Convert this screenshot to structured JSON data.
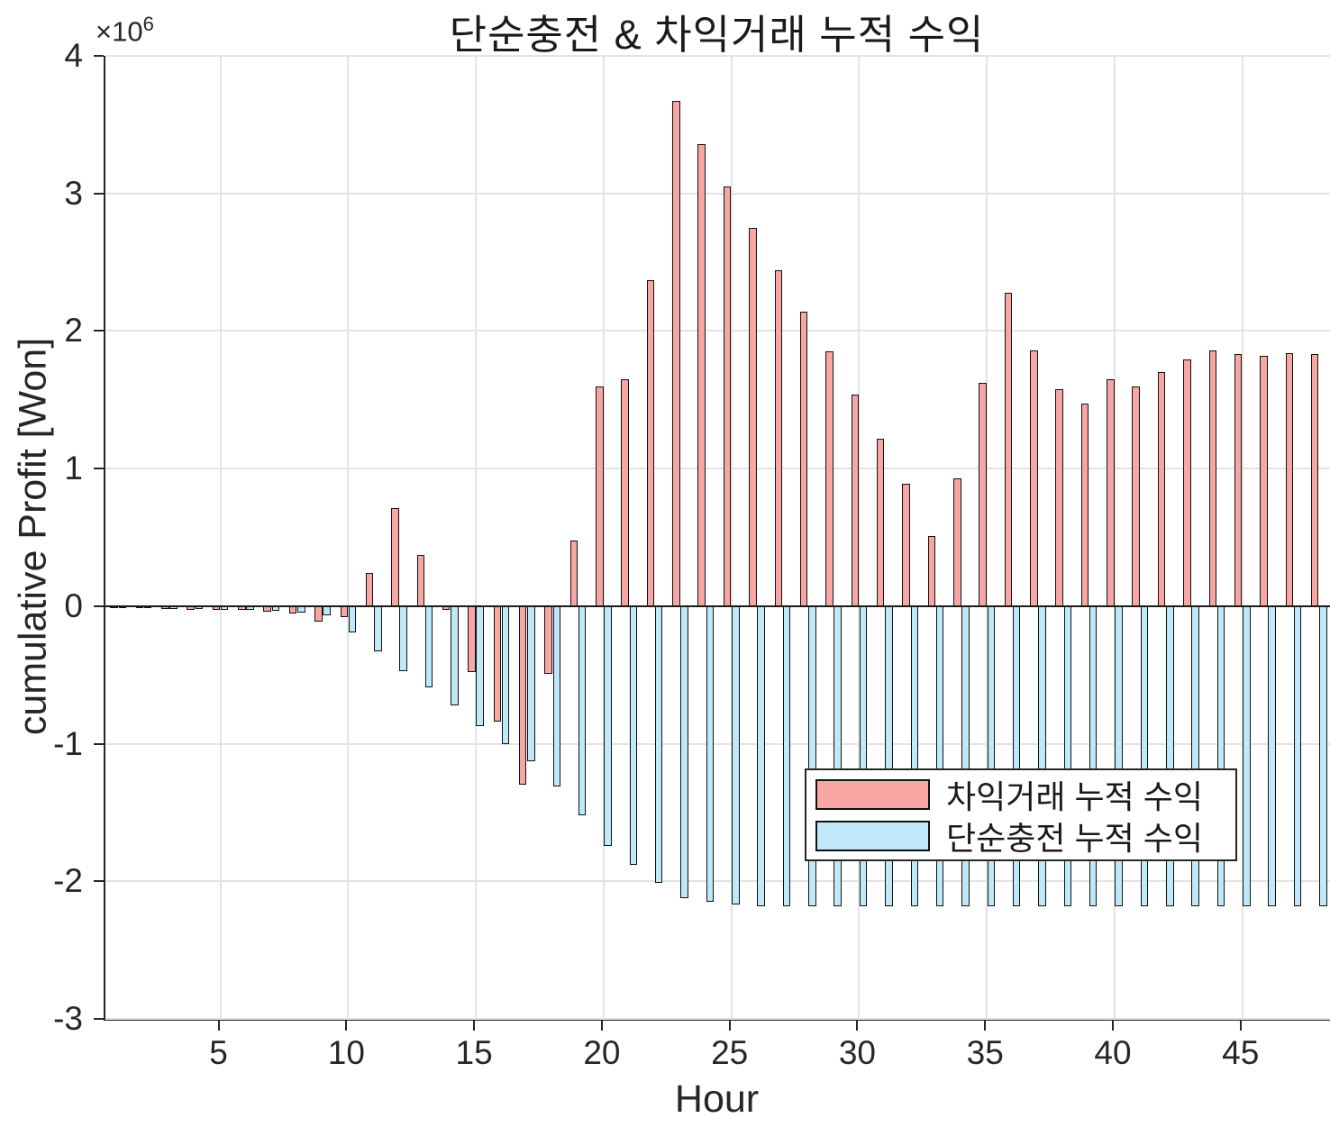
{
  "title": "단순충전 & 차익거래 누적 수익",
  "x_axis": {
    "label": "Hour",
    "ticks": [
      5,
      10,
      15,
      20,
      25,
      30,
      35,
      40,
      45
    ]
  },
  "y_axis": {
    "label": "cumulative Profit [Won]",
    "multiplier_base": "×10",
    "multiplier_exp": "6",
    "ticks": [
      4,
      3,
      2,
      1,
      0,
      -1,
      -2,
      -3
    ]
  },
  "legend": {
    "entries": [
      {
        "label": "차익거래 누적 수익",
        "color": "#f7a6a3"
      },
      {
        "label": "단순충전 누적 수익",
        "color": "#bfe9f8"
      }
    ]
  },
  "colors": {
    "arbitrage_bar": "#f7a6a3",
    "charging_bar": "#bfe9f8",
    "bar_edge": "#111111",
    "grid": "#e3e3e3",
    "axis": "#262626",
    "background": "#ffffff"
  },
  "chart_data": {
    "type": "bar",
    "title": "단순충전 & 차익거래 누적 수익",
    "xlabel": "Hour",
    "ylabel": "cumulative Profit [Won]",
    "value_unit": "1e6 Won (axis multiplier ×10^6)",
    "xlim": [
      0.5,
      48.5
    ],
    "ylim": [
      -3,
      4
    ],
    "grid": true,
    "legend_position": "middle-right",
    "x": [
      1,
      2,
      3,
      4,
      5,
      6,
      7,
      8,
      9,
      10,
      11,
      12,
      13,
      14,
      15,
      16,
      17,
      18,
      19,
      20,
      21,
      22,
      23,
      24,
      25,
      26,
      27,
      28,
      29,
      30,
      31,
      32,
      33,
      34,
      35,
      36,
      37,
      38,
      39,
      40,
      41,
      42,
      43,
      44,
      45,
      46,
      47,
      48
    ],
    "series": [
      {
        "name": "차익거래 누적 수익",
        "color": "#f7a6a3",
        "values": [
          -0.01,
          -0.015,
          -0.02,
          -0.025,
          -0.03,
          -0.03,
          -0.04,
          -0.055,
          -0.11,
          -0.08,
          0.24,
          0.71,
          0.37,
          -0.03,
          -0.48,
          -0.84,
          -1.3,
          -0.49,
          0.48,
          1.6,
          1.65,
          2.37,
          3.67,
          3.36,
          3.05,
          2.75,
          2.44,
          2.14,
          1.85,
          1.54,
          1.22,
          0.89,
          0.51,
          0.93,
          1.62,
          2.28,
          1.86,
          1.58,
          1.47,
          1.65,
          1.6,
          1.7,
          1.79,
          1.86,
          1.83,
          1.82,
          1.84,
          1.83
        ]
      },
      {
        "name": "단순충전 누적 수익",
        "color": "#bfe9f8",
        "values": [
          -0.01,
          -0.015,
          -0.02,
          -0.02,
          -0.025,
          -0.03,
          -0.035,
          -0.045,
          -0.065,
          -0.19,
          -0.33,
          -0.47,
          -0.59,
          -0.72,
          -0.87,
          -1.0,
          -1.13,
          -1.31,
          -1.52,
          -1.74,
          -1.88,
          -2.01,
          -2.12,
          -2.15,
          -2.17,
          -2.18,
          -2.18,
          -2.18,
          -2.18,
          -2.18,
          -2.18,
          -2.18,
          -2.18,
          -2.18,
          -2.18,
          -2.18,
          -2.18,
          -2.18,
          -2.18,
          -2.18,
          -2.18,
          -2.18,
          -2.18,
          -2.18,
          -2.18,
          -2.18,
          -2.18,
          -2.18
        ]
      }
    ]
  }
}
